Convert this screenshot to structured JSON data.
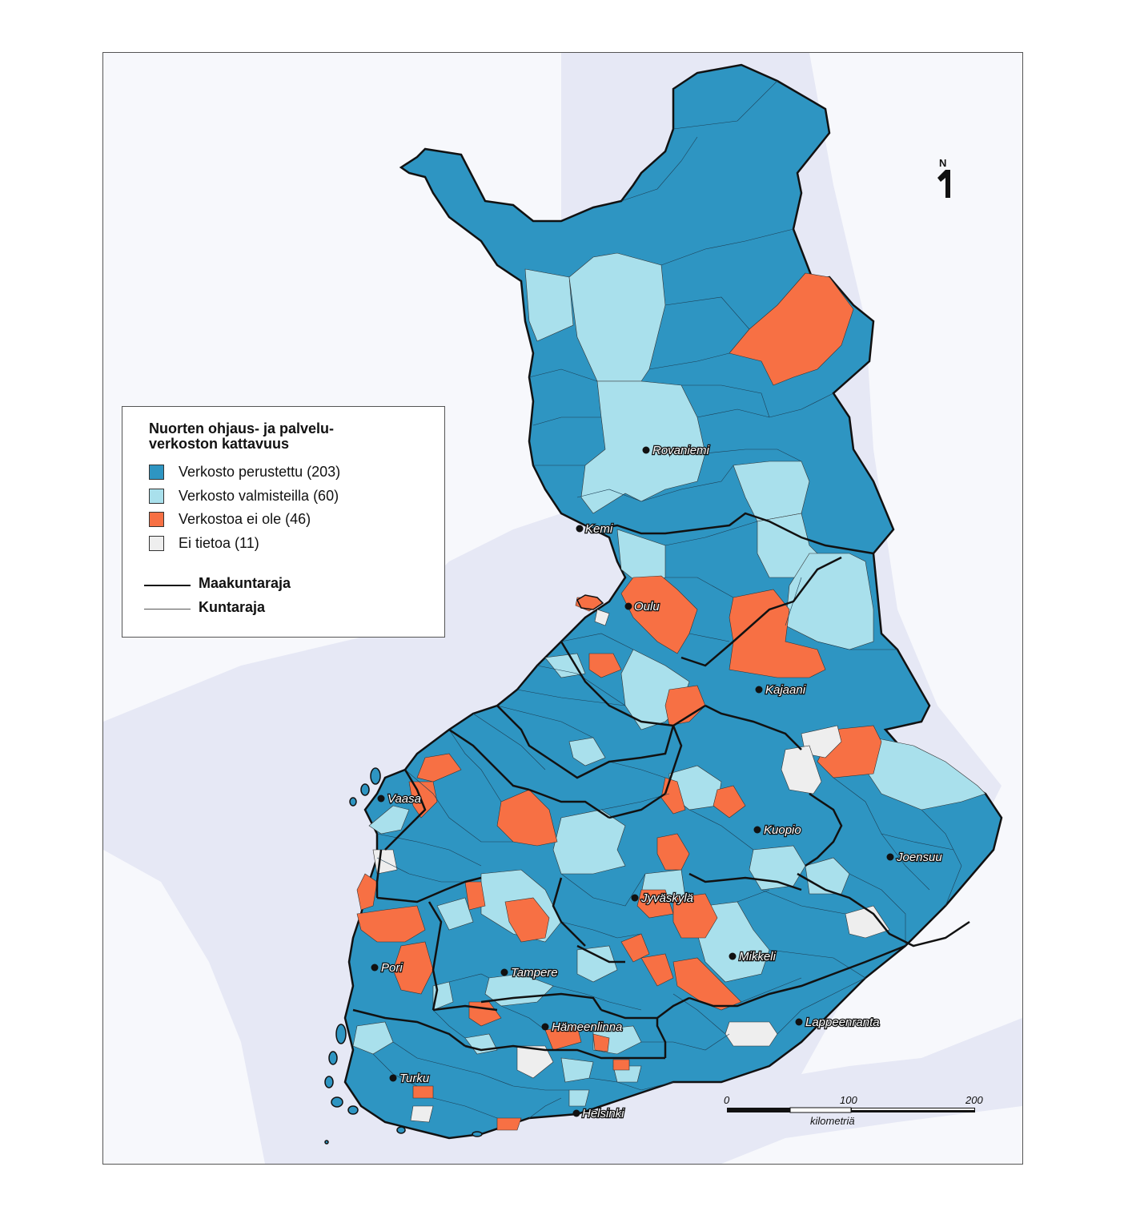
{
  "legend": {
    "title_line1": "Nuorten ohjaus- ja palvelu-",
    "title_line2": "verkoston kattavuus",
    "categories": [
      {
        "label": "Verkosto perustettu  (203)",
        "color": "#2e95c2"
      },
      {
        "label": "Verkosto valmisteilla  (60)",
        "color": "#a9e0ec"
      },
      {
        "label": "Verkostoa ei ole  (46)",
        "color": "#f77044"
      },
      {
        "label": "Ei tietoa  (11)",
        "color": "#eeeeee"
      }
    ],
    "boundaries": [
      {
        "label": "Maakuntaraja"
      },
      {
        "label": "Kuntaraja"
      }
    ]
  },
  "cities": [
    {
      "name": "Rovaniemi"
    },
    {
      "name": "Kemi"
    },
    {
      "name": "Oulu"
    },
    {
      "name": "Kajaani"
    },
    {
      "name": "Vaasa"
    },
    {
      "name": "Kuopio"
    },
    {
      "name": "Joensuu"
    },
    {
      "name": "Jyväskylä"
    },
    {
      "name": "Mikkeli"
    },
    {
      "name": "Pori"
    },
    {
      "name": "Tampere"
    },
    {
      "name": "Hämeenlinna"
    },
    {
      "name": "Lappeenranta"
    },
    {
      "name": "Turku"
    },
    {
      "name": "Helsinki"
    }
  ],
  "scale_bar": {
    "ticks": [
      "0",
      "100",
      "200"
    ],
    "unit": "kilometriä"
  },
  "north_arrow": {
    "label": "N"
  },
  "colors": {
    "sea": "#e6e8f5",
    "land_outside": "#f7f8fc",
    "border_thick": "#111111"
  }
}
